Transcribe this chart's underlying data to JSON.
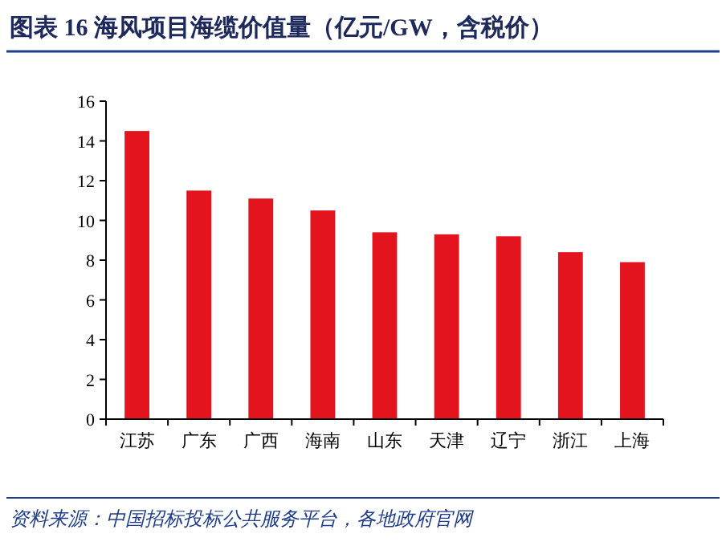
{
  "chart_data": {
    "type": "bar",
    "title": "图表 16   海风项目海缆价值量（亿元/GW，含税价）",
    "categories": [
      "江苏",
      "广东",
      "广西",
      "海南",
      "山东",
      "天津",
      "辽宁",
      "浙江",
      "上海"
    ],
    "values": [
      14.5,
      11.5,
      11.1,
      10.5,
      9.4,
      9.3,
      9.2,
      8.4,
      7.9
    ],
    "color": "#e3141e",
    "ylim": [
      0,
      16
    ],
    "yticks": [
      0,
      2,
      4,
      6,
      8,
      10,
      12,
      14,
      16
    ],
    "grid": false,
    "annotations": [
      "资料来源：中国招标投标公共服务平台，各地政府官网"
    ]
  }
}
